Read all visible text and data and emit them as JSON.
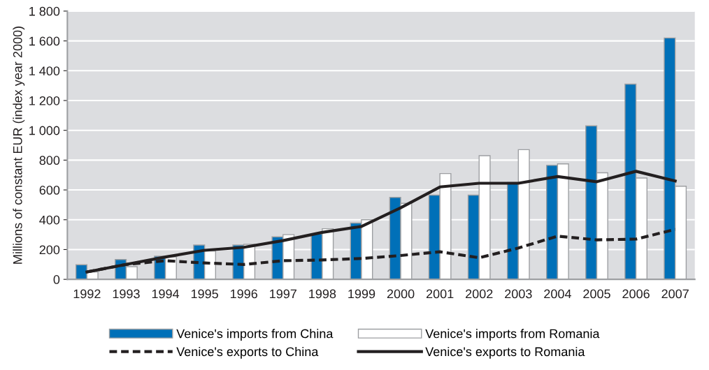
{
  "chart_data": {
    "type": "bar",
    "ylabel": "Millions of constant EUR (index year 2000)",
    "categories": [
      "1992",
      "1993",
      "1994",
      "1995",
      "1996",
      "1997",
      "1998",
      "1999",
      "2000",
      "2001",
      "2002",
      "2003",
      "2004",
      "2005",
      "2006",
      "2007"
    ],
    "series": [
      {
        "name": "Venice's imports from China",
        "color": "#0070b8",
        "values": [
          98,
          133,
          155,
          230,
          230,
          285,
          305,
          378,
          550,
          565,
          565,
          650,
          765,
          1030,
          1310,
          1620
        ]
      },
      {
        "name": "Venice's imports from Romania",
        "color": "#ffffff",
        "values": [
          50,
          85,
          150,
          190,
          235,
          300,
          340,
          400,
          510,
          710,
          830,
          870,
          775,
          715,
          680,
          625
        ]
      },
      {
        "name": "Venice's exports to China",
        "type": "line",
        "color": "#231f20",
        "line_style": "dashed",
        "values": [
          50,
          100,
          125,
          110,
          100,
          125,
          130,
          140,
          160,
          185,
          145,
          210,
          290,
          265,
          270,
          335
        ]
      },
      {
        "name": "Venice's exports to Romania",
        "type": "line",
        "color": "#231f20",
        "line_style": "solid",
        "values": [
          50,
          100,
          150,
          195,
          215,
          260,
          315,
          355,
          480,
          620,
          645,
          645,
          690,
          655,
          725,
          660
        ]
      }
    ],
    "ylim": [
      0,
      1800
    ],
    "yticks": [
      0,
      200,
      400,
      600,
      800,
      {
        "value": 1000,
        "label": "1 000"
      },
      {
        "value": 1200,
        "label": "1 200"
      },
      {
        "value": 1400,
        "label": "1 400"
      },
      {
        "value": 1600,
        "label": "1 600"
      },
      {
        "value": 1800,
        "label": "1 800"
      }
    ],
    "grid": "y",
    "legend": "bottom"
  }
}
